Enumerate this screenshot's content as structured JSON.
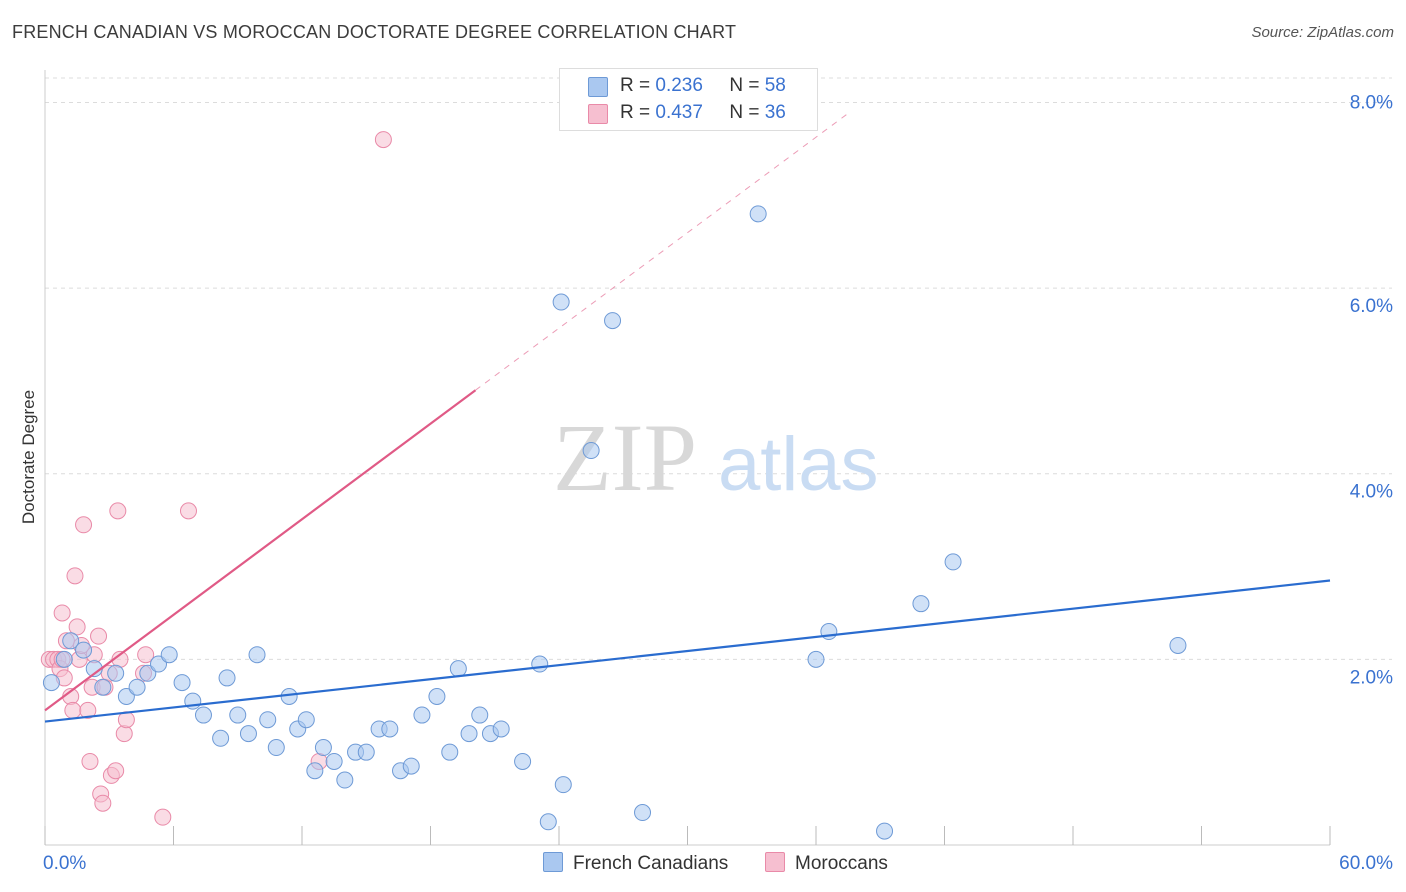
{
  "header": {
    "title": "FRENCH CANADIAN VS MOROCCAN DOCTORATE DEGREE CORRELATION CHART",
    "source": "Source: ZipAtlas.com"
  },
  "watermark": {
    "zip": "ZIP",
    "atlas": "atlas"
  },
  "legend": {
    "series1": {
      "r_label": "R = ",
      "r_value": "0.236",
      "n_label": "N = ",
      "n_value": "58"
    },
    "series2": {
      "r_label": "R = ",
      "r_value": "0.437",
      "n_label": "N = ",
      "n_value": "36"
    }
  },
  "bottom_legend": {
    "series1": "French Canadians",
    "series2": "Moroccans"
  },
  "colors": {
    "blue_fill": "#aac8f0",
    "blue_stroke": "#6e9ad6",
    "blue_line": "#2a6ccf",
    "pink_fill": "#f6bfd0",
    "pink_stroke": "#e98aa8",
    "pink_line": "#e05a86",
    "axis_text": "#3a72d0",
    "grid": "#dcdcdc"
  },
  "chart_data": {
    "type": "scatter",
    "title": "FRENCH CANADIAN VS MOROCCAN DOCTORATE DEGREE CORRELATION CHART",
    "xlabel": "",
    "ylabel": "Doctorate Degree",
    "xlim": [
      0,
      60
    ],
    "ylim": [
      0,
      8.35
    ],
    "x_tick_labels": [
      "0.0%",
      "60.0%"
    ],
    "y_ticks": [
      2,
      4,
      6,
      8
    ],
    "y_tick_labels": [
      "2.0%",
      "4.0%",
      "6.0%",
      "8.0%"
    ],
    "grid": true,
    "series": [
      {
        "name": "French Canadians",
        "R": 0.236,
        "N": 58,
        "trend": {
          "x": [
            0,
            60
          ],
          "y": [
            1.33,
            2.85
          ],
          "dashed_extension": false
        },
        "points": [
          [
            0.3,
            1.75
          ],
          [
            0.9,
            2.0
          ],
          [
            1.2,
            2.2
          ],
          [
            1.8,
            2.1
          ],
          [
            2.3,
            1.9
          ],
          [
            2.7,
            1.7
          ],
          [
            3.3,
            1.85
          ],
          [
            3.8,
            1.6
          ],
          [
            4.3,
            1.7
          ],
          [
            4.8,
            1.85
          ],
          [
            5.3,
            1.95
          ],
          [
            5.8,
            2.05
          ],
          [
            6.4,
            1.75
          ],
          [
            6.9,
            1.55
          ],
          [
            7.4,
            1.4
          ],
          [
            8.2,
            1.15
          ],
          [
            8.5,
            1.8
          ],
          [
            9.0,
            1.4
          ],
          [
            9.5,
            1.2
          ],
          [
            9.9,
            2.05
          ],
          [
            10.4,
            1.35
          ],
          [
            10.8,
            1.05
          ],
          [
            11.4,
            1.6
          ],
          [
            11.8,
            1.25
          ],
          [
            12.2,
            1.35
          ],
          [
            12.6,
            0.8
          ],
          [
            13.0,
            1.05
          ],
          [
            13.5,
            0.9
          ],
          [
            14.0,
            0.7
          ],
          [
            14.5,
            1.0
          ],
          [
            15.0,
            1.0
          ],
          [
            15.6,
            1.25
          ],
          [
            16.1,
            1.25
          ],
          [
            16.6,
            0.8
          ],
          [
            17.1,
            0.85
          ],
          [
            17.6,
            1.4
          ],
          [
            18.3,
            1.6
          ],
          [
            18.9,
            1.0
          ],
          [
            19.3,
            1.9
          ],
          [
            19.8,
            1.2
          ],
          [
            20.3,
            1.4
          ],
          [
            20.8,
            1.2
          ],
          [
            21.3,
            1.25
          ],
          [
            22.3,
            0.9
          ],
          [
            23.1,
            1.95
          ],
          [
            23.5,
            0.25
          ],
          [
            24.2,
            0.65
          ],
          [
            24.1,
            5.85
          ],
          [
            25.5,
            4.25
          ],
          [
            26.5,
            5.65
          ],
          [
            27.9,
            0.35
          ],
          [
            33.3,
            6.8
          ],
          [
            36.0,
            2.0
          ],
          [
            36.6,
            2.3
          ],
          [
            39.2,
            0.15
          ],
          [
            40.9,
            2.6
          ],
          [
            42.4,
            3.05
          ],
          [
            52.9,
            2.15
          ]
        ]
      },
      {
        "name": "Moroccans",
        "R": 0.437,
        "N": 36,
        "trend": {
          "x": [
            0,
            20.1
          ],
          "y": [
            1.45,
            4.9
          ],
          "dashed_extension": true,
          "dashed_to": {
            "x": 37.6,
            "y": 7.9
          }
        },
        "points": [
          [
            0.2,
            2.0
          ],
          [
            0.4,
            2.0
          ],
          [
            0.6,
            2.0
          ],
          [
            0.7,
            1.9
          ],
          [
            0.8,
            2.0
          ],
          [
            0.8,
            2.5
          ],
          [
            0.9,
            1.8
          ],
          [
            1.0,
            2.2
          ],
          [
            1.2,
            1.6
          ],
          [
            1.3,
            1.45
          ],
          [
            1.4,
            2.9
          ],
          [
            1.5,
            2.35
          ],
          [
            1.6,
            2.0
          ],
          [
            1.7,
            2.15
          ],
          [
            1.8,
            3.45
          ],
          [
            2.0,
            1.45
          ],
          [
            2.1,
            0.9
          ],
          [
            2.2,
            1.7
          ],
          [
            2.3,
            2.05
          ],
          [
            2.5,
            2.25
          ],
          [
            2.6,
            0.55
          ],
          [
            2.7,
            0.45
          ],
          [
            2.8,
            1.7
          ],
          [
            3.0,
            1.85
          ],
          [
            3.1,
            0.75
          ],
          [
            3.3,
            0.8
          ],
          [
            3.4,
            3.6
          ],
          [
            3.5,
            2.0
          ],
          [
            3.7,
            1.2
          ],
          [
            3.8,
            1.35
          ],
          [
            4.6,
            1.85
          ],
          [
            4.7,
            2.05
          ],
          [
            5.5,
            0.3
          ],
          [
            6.7,
            3.6
          ],
          [
            12.8,
            0.9
          ],
          [
            15.8,
            7.6
          ]
        ]
      }
    ]
  }
}
